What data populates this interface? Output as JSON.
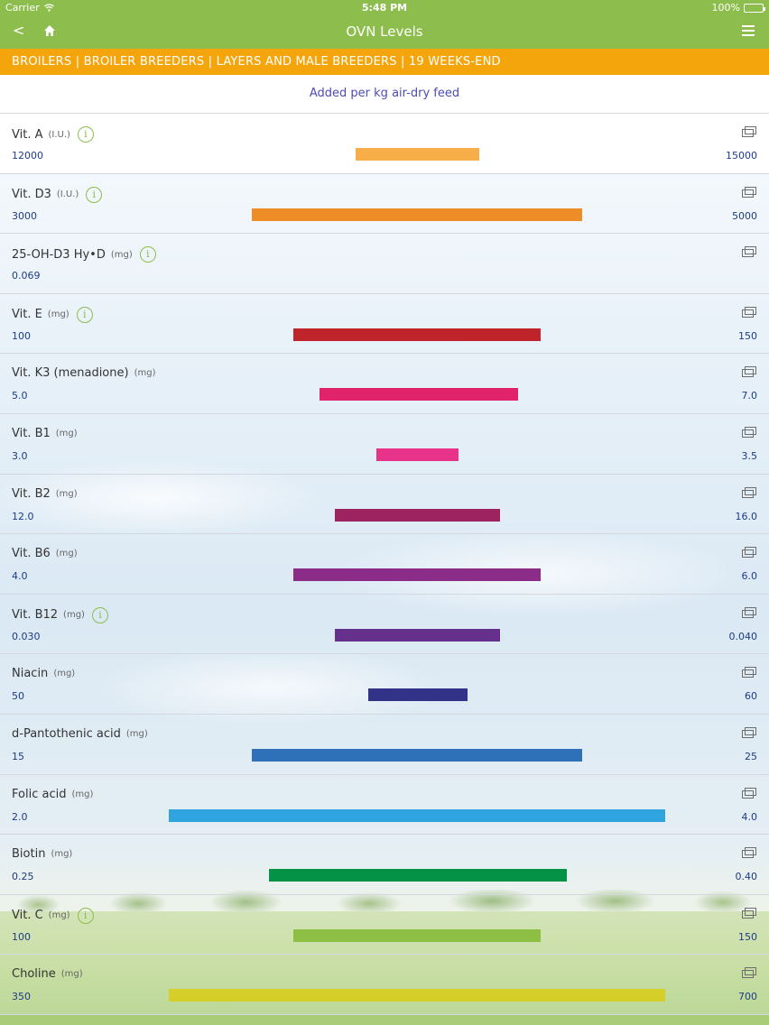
{
  "status_bar": {
    "carrier": "Carrier",
    "time": "5:48 PM",
    "battery": "100%"
  },
  "nav": {
    "back_label": "<",
    "title": "OVN Levels"
  },
  "category": "BROILERS | BROILER BREEDERS | LAYERS AND MALE BREEDERS | 19 WEEKS-END",
  "subtitle": "Added per kg air-dry feed",
  "info_glyph": "i",
  "rows": [
    {
      "name": "Vit. A",
      "unit": "(I.U.)",
      "info": true,
      "min": "12000",
      "max": "15000",
      "color": "#f8ae48",
      "bar_start": 0.462,
      "bar_end": 0.623
    },
    {
      "name": "Vit. D3",
      "unit": "(I.U.)",
      "info": true,
      "min": "3000",
      "max": "5000",
      "color": "#ee8d27",
      "bar_start": 0.328,
      "bar_end": 0.758
    },
    {
      "name": "25-OH-D3  Hy•D",
      "unit": "(mg)",
      "info": true,
      "min": "0.069",
      "max": "",
      "color": "",
      "bar_start": null,
      "bar_end": null
    },
    {
      "name": "Vit. E",
      "unit": "(mg)",
      "info": true,
      "min": "100",
      "max": "150",
      "color": "#c0242b",
      "bar_start": 0.382,
      "bar_end": 0.704
    },
    {
      "name": "Vit. K3 (menadione)",
      "unit": "(mg)",
      "info": false,
      "min": "5.0",
      "max": "7.0",
      "color": "#e0236a",
      "bar_start": 0.415,
      "bar_end": 0.673
    },
    {
      "name": "Vit. B1",
      "unit": "(mg)",
      "info": false,
      "min": "3.0",
      "max": "3.5",
      "color": "#e8338a",
      "bar_start": 0.49,
      "bar_end": 0.597
    },
    {
      "name": "Vit. B2",
      "unit": "(mg)",
      "info": false,
      "min": "12.0",
      "max": "16.0",
      "color": "#9c2360",
      "bar_start": 0.436,
      "bar_end": 0.651
    },
    {
      "name": "Vit. B6",
      "unit": "(mg)",
      "info": false,
      "min": "4.0",
      "max": "6.0",
      "color": "#8a2c88",
      "bar_start": 0.382,
      "bar_end": 0.704
    },
    {
      "name": "Vit. B12",
      "unit": "(mg)",
      "info": true,
      "min": "0.030",
      "max": "0.040",
      "color": "#64308b",
      "bar_start": 0.436,
      "bar_end": 0.651
    },
    {
      "name": "Niacin",
      "unit": "(mg)",
      "info": false,
      "min": "50",
      "max": "60",
      "color": "#323289",
      "bar_start": 0.479,
      "bar_end": 0.608
    },
    {
      "name": "d-Pantothenic acid",
      "unit": "(mg)",
      "info": false,
      "min": "15",
      "max": "25",
      "color": "#2f71b9",
      "bar_start": 0.328,
      "bar_end": 0.758
    },
    {
      "name": "Folic acid",
      "unit": "(mg)",
      "info": false,
      "min": "2.0",
      "max": "4.0",
      "color": "#2fa4df",
      "bar_start": 0.22,
      "bar_end": 0.865
    },
    {
      "name": "Biotin",
      "unit": "(mg)",
      "info": false,
      "min": "0.25",
      "max": "0.40",
      "color": "#049247",
      "bar_start": 0.35,
      "bar_end": 0.737
    },
    {
      "name": "Vit. C",
      "unit": "(mg)",
      "info": true,
      "min": "100",
      "max": "150",
      "color": "#8cbf44",
      "bar_start": 0.382,
      "bar_end": 0.704
    },
    {
      "name": "Choline",
      "unit": "(mg)",
      "info": false,
      "min": "350",
      "max": "700",
      "color": "#d6cf2a",
      "bar_start": 0.22,
      "bar_end": 0.865
    }
  ]
}
